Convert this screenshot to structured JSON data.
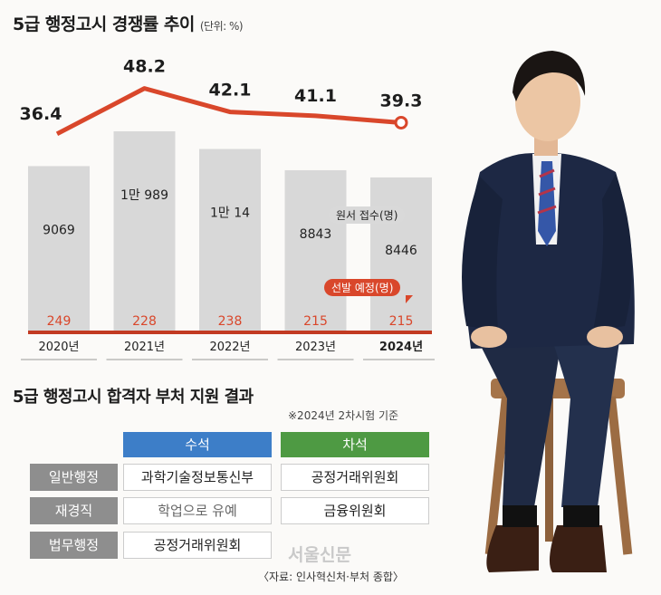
{
  "title": "5급 행정고시 경쟁률 추이",
  "unit": "(단위: %)",
  "chart_data": {
    "type": "bar+line",
    "categories": [
      "2020년",
      "2021년",
      "2022년",
      "2023년",
      "2024년"
    ],
    "series": [
      {
        "name": "경쟁률",
        "values": [
          36.4,
          48.2,
          42.1,
          41.1,
          39.3
        ],
        "labels": [
          "36.4",
          "48.2",
          "42.1",
          "41.1",
          "39.3"
        ],
        "color": "#d9472b"
      },
      {
        "name": "원서 접수(명)",
        "values": [
          9069,
          10989,
          10014,
          8843,
          8446
        ],
        "labels": [
          "9069",
          "1만 989",
          "1만 14",
          "8843",
          "8446"
        ],
        "color": "#d8d8d8"
      },
      {
        "name": "선발 예정(명)",
        "values": [
          249,
          228,
          238,
          215,
          215
        ],
        "labels": [
          "249",
          "228",
          "238",
          "215",
          "215"
        ],
        "color": "#d9472b"
      }
    ],
    "highlight_category": "2024년"
  },
  "legend": {
    "applicants": "원서 접수(명)",
    "selection": "선발 예정(명)"
  },
  "table": {
    "title": "5급 행정고시 합격자 부처 지원 결과",
    "note": "※2024년 2차시험 기준",
    "headers": [
      "수석",
      "차석"
    ],
    "header_colors": [
      "#3d7ec8",
      "#4e9a43"
    ],
    "rows": [
      {
        "label": "일반행정",
        "chief": "과학기술정보통신부",
        "runner": "공정거래위원회"
      },
      {
        "label": "재경직",
        "chief": "학업으로 유예",
        "runner": "금융위원회"
      },
      {
        "label": "법무행정",
        "chief": "공정거래위원회",
        "runner": ""
      }
    ]
  },
  "source": "〈자료: 인사혁신처·부처 종합〉",
  "watermark": "서울신문"
}
